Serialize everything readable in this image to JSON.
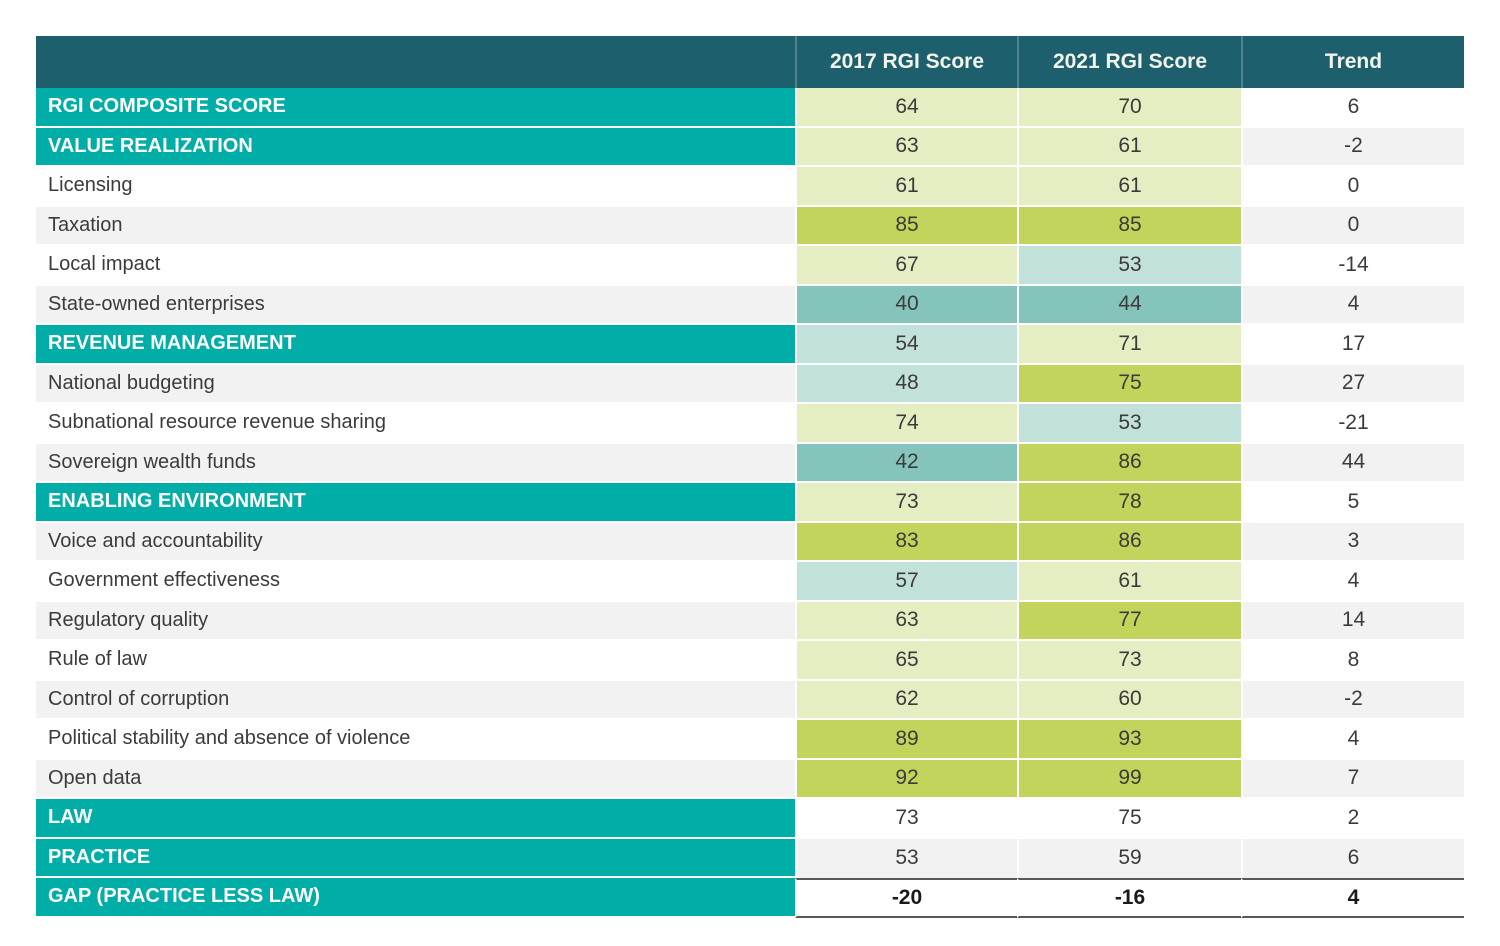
{
  "table": {
    "header": {
      "col_label": "",
      "col_2017": "2017 RGI Score",
      "col_2021": "2021 RGI Score",
      "col_trend": "Trend"
    },
    "colors": {
      "header_bg": "#1d5f6d",
      "header_text": "#f2f4ea",
      "section_bg": "#00ada7",
      "section_text": "#ffffff",
      "zebra_gray": "#f2f2f2",
      "zebra_white": "#ffffff",
      "score_high": "#c3d45c",
      "score_good": "#e5edc3",
      "score_mid": "#c3e1db",
      "score_low": "#85c4bb",
      "text": "#3b3b3b",
      "total_line": "#55595c"
    },
    "rows": [
      {
        "label": "RGI COMPOSITE SCORE",
        "style": "section",
        "s2017": 64,
        "c2017": "score_good",
        "s2021": 70,
        "c2021": "score_good",
        "trend": 6
      },
      {
        "label": "VALUE REALIZATION",
        "style": "section",
        "s2017": 63,
        "c2017": "score_good",
        "s2021": 61,
        "c2021": "score_good",
        "trend": -2
      },
      {
        "label": "Licensing",
        "style": "sub",
        "s2017": 61,
        "c2017": "score_good",
        "s2021": 61,
        "c2021": "score_good",
        "trend": 0
      },
      {
        "label": "Taxation",
        "style": "sub",
        "s2017": 85,
        "c2017": "score_high",
        "s2021": 85,
        "c2021": "score_high",
        "trend": 0
      },
      {
        "label": "Local impact",
        "style": "sub",
        "s2017": 67,
        "c2017": "score_good",
        "s2021": 53,
        "c2021": "score_mid",
        "trend": -14
      },
      {
        "label": "State-owned enterprises",
        "style": "sub",
        "s2017": 40,
        "c2017": "score_low",
        "s2021": 44,
        "c2021": "score_low",
        "trend": 4
      },
      {
        "label": "REVENUE MANAGEMENT",
        "style": "section",
        "s2017": 54,
        "c2017": "score_mid",
        "s2021": 71,
        "c2021": "score_good",
        "trend": 17
      },
      {
        "label": "National budgeting",
        "style": "sub",
        "s2017": 48,
        "c2017": "score_mid",
        "s2021": 75,
        "c2021": "score_high",
        "trend": 27
      },
      {
        "label": "Subnational resource revenue sharing",
        "style": "sub",
        "s2017": 74,
        "c2017": "score_good",
        "s2021": 53,
        "c2021": "score_mid",
        "trend": -21
      },
      {
        "label": "Sovereign wealth funds",
        "style": "sub",
        "s2017": 42,
        "c2017": "score_low",
        "s2021": 86,
        "c2021": "score_high",
        "trend": 44
      },
      {
        "label": "ENABLING ENVIRONMENT",
        "style": "section",
        "s2017": 73,
        "c2017": "score_good",
        "s2021": 78,
        "c2021": "score_high",
        "trend": 5
      },
      {
        "label": "Voice and accountability",
        "style": "sub",
        "s2017": 83,
        "c2017": "score_high",
        "s2021": 86,
        "c2021": "score_high",
        "trend": 3
      },
      {
        "label": "Government effectiveness",
        "style": "sub",
        "s2017": 57,
        "c2017": "score_mid",
        "s2021": 61,
        "c2021": "score_good",
        "trend": 4
      },
      {
        "label": "Regulatory quality",
        "style": "sub",
        "s2017": 63,
        "c2017": "score_good",
        "s2021": 77,
        "c2021": "score_high",
        "trend": 14
      },
      {
        "label": "Rule of law",
        "style": "sub",
        "s2017": 65,
        "c2017": "score_good",
        "s2021": 73,
        "c2021": "score_good",
        "trend": 8
      },
      {
        "label": "Control of corruption",
        "style": "sub",
        "s2017": 62,
        "c2017": "score_good",
        "s2021": 60,
        "c2021": "score_good",
        "trend": -2
      },
      {
        "label": "Political stability and absence of violence",
        "style": "sub",
        "s2017": 89,
        "c2017": "score_high",
        "s2021": 93,
        "c2021": "score_high",
        "trend": 4
      },
      {
        "label": "Open data",
        "style": "sub",
        "s2017": 92,
        "c2017": "score_high",
        "s2021": 99,
        "c2021": "score_high",
        "trend": 7
      },
      {
        "label": "LAW",
        "style": "section",
        "s2017": 73,
        "c2017": null,
        "s2021": 75,
        "c2021": null,
        "trend": 2
      },
      {
        "label": "PRACTICE",
        "style": "section",
        "s2017": 53,
        "c2017": null,
        "s2021": 59,
        "c2021": null,
        "trend": 6
      },
      {
        "label": "GAP (PRACTICE LESS LAW)",
        "style": "total",
        "s2017": -20,
        "c2017": null,
        "s2021": -16,
        "c2021": null,
        "trend": 4
      }
    ]
  },
  "chart_data": {
    "type": "table",
    "columns": [
      "",
      "2017 RGI Score",
      "2021 RGI Score",
      "Trend"
    ],
    "rows": [
      [
        "RGI COMPOSITE SCORE",
        64,
        70,
        6
      ],
      [
        "VALUE REALIZATION",
        63,
        61,
        -2
      ],
      [
        "Licensing",
        61,
        61,
        0
      ],
      [
        "Taxation",
        85,
        85,
        0
      ],
      [
        "Local impact",
        67,
        53,
        -14
      ],
      [
        "State-owned enterprises",
        40,
        44,
        4
      ],
      [
        "REVENUE MANAGEMENT",
        54,
        71,
        17
      ],
      [
        "National budgeting",
        48,
        75,
        27
      ],
      [
        "Subnational resource revenue sharing",
        74,
        53,
        -21
      ],
      [
        "Sovereign wealth funds",
        42,
        86,
        44
      ],
      [
        "ENABLING ENVIRONMENT",
        73,
        78,
        5
      ],
      [
        "Voice and accountability",
        83,
        86,
        3
      ],
      [
        "Government effectiveness",
        57,
        61,
        4
      ],
      [
        "Regulatory quality",
        63,
        77,
        14
      ],
      [
        "Rule of law",
        65,
        73,
        8
      ],
      [
        "Control of corruption",
        62,
        60,
        -2
      ],
      [
        "Political stability and absence of violence",
        89,
        93,
        4
      ],
      [
        "Open data",
        92,
        99,
        7
      ],
      [
        "LAW",
        73,
        75,
        2
      ],
      [
        "PRACTICE",
        53,
        59,
        6
      ],
      [
        "GAP (PRACTICE LESS LAW)",
        -20,
        -16,
        4
      ]
    ],
    "cell_color_scale": {
      "score_high_>=75": "#c3d45c",
      "score_good_60_74": "#e5edc3",
      "score_mid_45_59": "#c3e1db",
      "score_low_<45": "#85c4bb"
    },
    "layout_hints": "heatmap-style scorecard table; teal section header rows; LAW/PRACTICE/GAP rows uncolored; GAP row bold with dark rules above and below"
  }
}
